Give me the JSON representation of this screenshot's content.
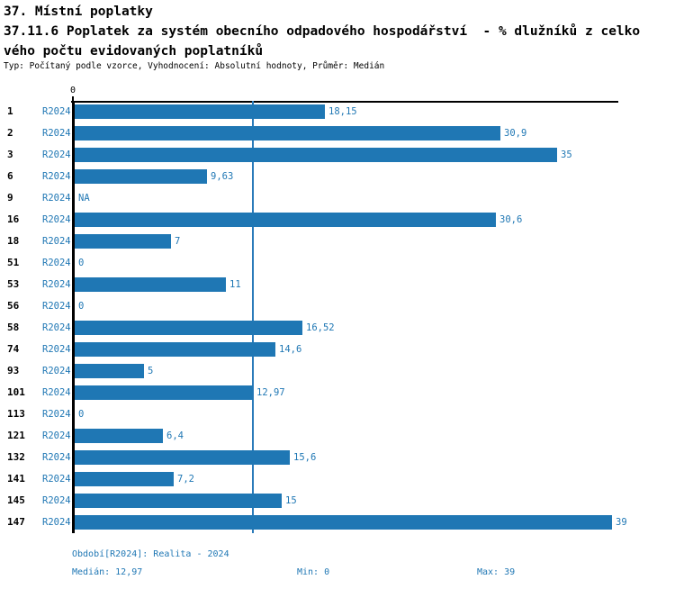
{
  "header": {
    "title": "37. Místní poplatky",
    "subtitle_line1": "37.11.6 Poplatek za systém obecního odpadového hospodářství  - % dlužníků z celko",
    "subtitle_line2": "vého počtu evidovaných poplatníků",
    "meta": "Typ: Počítaný podle vzorce, Vyhodnocení: Absolutní hodnoty, Průměr: Medián"
  },
  "chart_data": {
    "type": "bar",
    "orientation": "horizontal",
    "title": "37. Místní poplatky",
    "subtitle": "37.11.6 Poplatek za systém obecního odpadového hospodářství - % dlužníků z celkového počtu evidovaných poplatníků",
    "categories": [
      "1",
      "2",
      "3",
      "6",
      "9",
      "16",
      "18",
      "51",
      "53",
      "56",
      "58",
      "74",
      "93",
      "101",
      "113",
      "121",
      "132",
      "141",
      "145",
      "147"
    ],
    "series_label": "R2024",
    "values": [
      18.15,
      30.9,
      35,
      9.63,
      null,
      30.6,
      7,
      0,
      11,
      0,
      16.52,
      14.6,
      5,
      12.97,
      0,
      6.4,
      15.6,
      7.2,
      15,
      39
    ],
    "value_labels": [
      "18,15",
      "30,9",
      "35",
      "9,63",
      "NA",
      "30,6",
      "7",
      "0",
      "11",
      "0",
      "16,52",
      "14,6",
      "5",
      "12,97",
      "0",
      "6,4",
      "15,6",
      "7,2",
      "15",
      "39"
    ],
    "axis_tick_label": "0",
    "xlim": [
      0,
      39.5
    ],
    "median_line_value": 12.97,
    "stats": {
      "median": 12.97,
      "min": 0,
      "max": 39
    },
    "bar_color": "#1f77b4",
    "median_line_color": "#2b7bba",
    "grid": false,
    "legend": false,
    "xlabel": "",
    "ylabel": ""
  },
  "footer": {
    "period": "Období[R2024]: Realita - 2024",
    "median": "Medián: 12,97",
    "min": "Min: 0",
    "max": "Max: 39"
  }
}
